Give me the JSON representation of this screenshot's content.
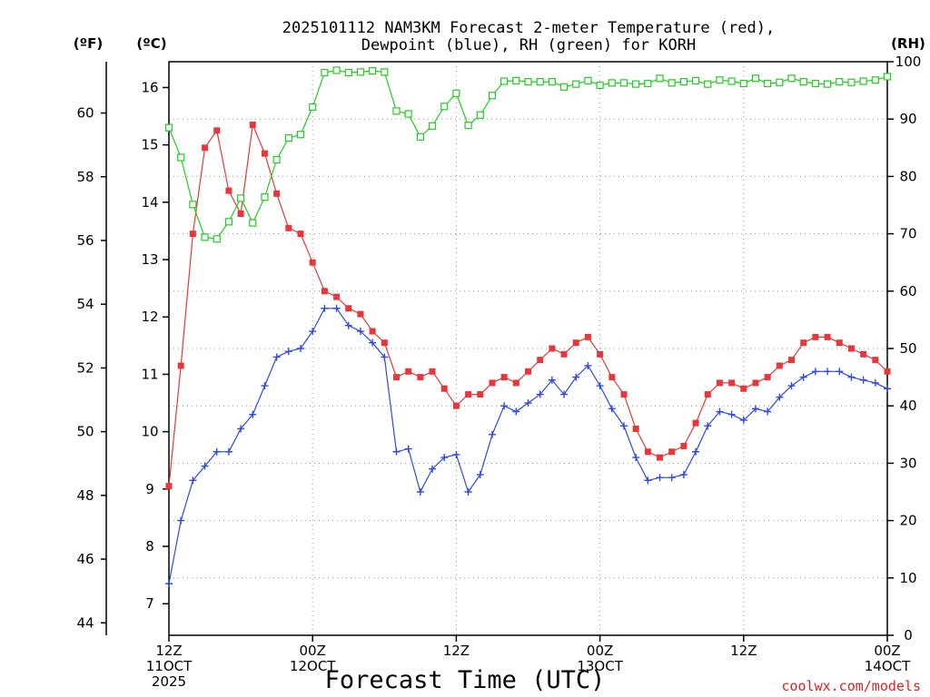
{
  "chart_data": {
    "type": "line",
    "title": [
      "2025101112 NAM3KM Forecast 2-meter Temperature (red),",
      "Dewpoint (blue), RH (green) for KORH"
    ],
    "xlabel": "Forecast Time (UTC)",
    "credit": "coolwx.com/models",
    "unit_labels": {
      "fahrenheit": "(ºF)",
      "celsius": "(ºC)",
      "rh": "(RH)"
    },
    "x_range_hours": [
      0,
      60
    ],
    "x_ticks": [
      {
        "hour": 0,
        "lines": [
          "12Z",
          "11OCT",
          "2025"
        ]
      },
      {
        "hour": 12,
        "lines": [
          "00Z",
          "12OCT"
        ]
      },
      {
        "hour": 24,
        "lines": [
          "12Z"
        ]
      },
      {
        "hour": 36,
        "lines": [
          "00Z",
          "13OCT"
        ]
      },
      {
        "hour": 48,
        "lines": [
          "12Z"
        ]
      },
      {
        "hour": 60,
        "lines": [
          "00Z",
          "14OCT"
        ]
      }
    ],
    "celsius_axis": {
      "range": [
        6.45,
        16.45
      ],
      "ticks": [
        7,
        8,
        9,
        10,
        11,
        12,
        13,
        14,
        15,
        16
      ]
    },
    "fahrenheit_ticks": [
      44,
      46,
      48,
      50,
      52,
      54,
      56,
      58,
      60
    ],
    "rh_axis": {
      "range": [
        0,
        100
      ],
      "ticks": [
        0,
        10,
        20,
        30,
        40,
        50,
        60,
        70,
        80,
        90,
        100
      ]
    },
    "series": [
      {
        "name": "2-meter Temperature",
        "color": "#e8373a",
        "marker": "filled-square",
        "axis": "celsius",
        "x": [
          0,
          1,
          2,
          3,
          4,
          5,
          6,
          7,
          8,
          9,
          10,
          11,
          12,
          13,
          14,
          15,
          16,
          17,
          18,
          19,
          20,
          21,
          22,
          23,
          24,
          25,
          26,
          27,
          28,
          29,
          30,
          31,
          32,
          33,
          34,
          35,
          36,
          37,
          38,
          39,
          40,
          41,
          42,
          43,
          44,
          45,
          46,
          47,
          48,
          49,
          50,
          51,
          52,
          53,
          54,
          55,
          56,
          57,
          58,
          59,
          60
        ],
        "values": [
          9.05,
          11.15,
          13.45,
          14.95,
          15.25,
          14.2,
          13.8,
          15.35,
          14.85,
          14.15,
          13.55,
          13.45,
          12.95,
          12.45,
          12.35,
          12.15,
          12.05,
          11.75,
          11.55,
          10.95,
          11.05,
          10.95,
          11.05,
          10.75,
          10.45,
          10.65,
          10.65,
          10.85,
          10.95,
          10.85,
          11.05,
          11.25,
          11.45,
          11.35,
          11.55,
          11.65,
          11.35,
          10.95,
          10.65,
          10.05,
          9.65,
          9.55,
          9.65,
          9.75,
          10.15,
          10.65,
          10.85,
          10.85,
          10.75,
          10.85,
          10.95,
          11.15,
          11.25,
          11.55,
          11.65,
          11.65,
          11.55,
          11.45,
          11.35,
          11.25,
          11.05
        ]
      },
      {
        "name": "Dewpoint",
        "color": "#2f48e8",
        "marker": "plus",
        "axis": "celsius",
        "x": [
          0,
          1,
          2,
          3,
          4,
          5,
          6,
          7,
          8,
          9,
          10,
          11,
          12,
          13,
          14,
          15,
          16,
          17,
          18,
          19,
          20,
          21,
          22,
          23,
          24,
          25,
          26,
          27,
          28,
          29,
          30,
          31,
          32,
          33,
          34,
          35,
          36,
          37,
          38,
          39,
          40,
          41,
          42,
          43,
          44,
          45,
          46,
          47,
          48,
          49,
          50,
          51,
          52,
          53,
          54,
          55,
          56,
          57,
          58,
          59,
          60
        ],
        "values": [
          7.35,
          8.45,
          9.15,
          9.4,
          9.65,
          9.65,
          10.05,
          10.3,
          10.8,
          11.3,
          11.4,
          11.45,
          11.75,
          12.15,
          12.15,
          11.85,
          11.75,
          11.55,
          11.3,
          9.65,
          9.7,
          8.95,
          9.35,
          9.55,
          9.6,
          8.95,
          9.25,
          9.95,
          10.45,
          10.35,
          10.5,
          10.65,
          10.9,
          10.65,
          10.95,
          11.15,
          10.8,
          10.4,
          10.1,
          9.55,
          9.15,
          9.2,
          9.2,
          9.25,
          9.65,
          10.1,
          10.35,
          10.3,
          10.2,
          10.4,
          10.35,
          10.6,
          10.8,
          10.95,
          11.05,
          11.05,
          11.05,
          10.95,
          10.9,
          10.85,
          10.75
        ]
      },
      {
        "name": "RH",
        "color": "#22cc22",
        "marker": "open-square",
        "axis": "rh",
        "x": [
          0,
          1,
          2,
          3,
          4,
          5,
          6,
          7,
          8,
          9,
          10,
          11,
          12,
          13,
          14,
          15,
          16,
          17,
          18,
          19,
          20,
          21,
          22,
          23,
          24,
          25,
          26,
          27,
          28,
          29,
          30,
          31,
          32,
          33,
          34,
          35,
          36,
          37,
          38,
          39,
          40,
          41,
          42,
          43,
          44,
          45,
          46,
          47,
          48,
          49,
          50,
          51,
          52,
          53,
          54,
          55,
          56,
          57,
          58,
          59,
          60
        ],
        "values": [
          88.5,
          83.3,
          75.1,
          69.4,
          69.1,
          72.1,
          76.2,
          71.9,
          76.4,
          82.9,
          86.7,
          87.3,
          92.1,
          98.1,
          98.5,
          98.1,
          98.2,
          98.4,
          98.2,
          91.4,
          90.9,
          86.9,
          88.8,
          92.2,
          94.5,
          88.9,
          90.7,
          94.1,
          96.6,
          96.7,
          96.5,
          96.5,
          96.5,
          95.6,
          96.1,
          96.7,
          95.9,
          96.3,
          96.3,
          96.1,
          96.2,
          97.1,
          96.3,
          96.5,
          96.7,
          96.1,
          96.8,
          96.6,
          96.2,
          97.1,
          96.2,
          96.4,
          97.1,
          96.5,
          96.2,
          96.1,
          96.5,
          96.4,
          96.6,
          96.8,
          97.4
        ]
      }
    ]
  }
}
